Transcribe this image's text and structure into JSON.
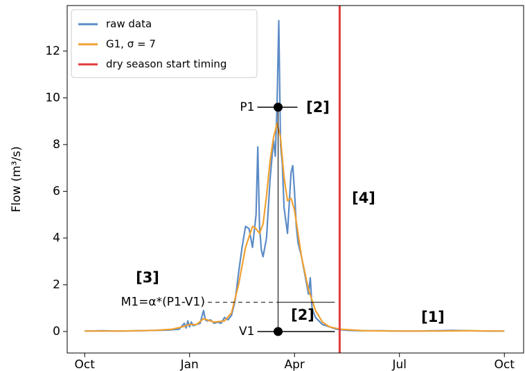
{
  "chart_data": {
    "type": "line",
    "y_label": "Flow (m³/s)",
    "xlim": [
      -0.5,
      12.55
    ],
    "ylim": [
      -0.92,
      13.95
    ],
    "xticks": [
      {
        "value": 0,
        "label": "Oct"
      },
      {
        "value": 3,
        "label": "Jan"
      },
      {
        "value": 6,
        "label": "Apr"
      },
      {
        "value": 9,
        "label": "Jul"
      },
      {
        "value": 12,
        "label": "Oct"
      }
    ],
    "yticks": [
      0,
      2,
      4,
      6,
      8,
      10,
      12
    ],
    "legend": "upper left",
    "series": [
      {
        "name": "raw data",
        "color": "#5b8bc6",
        "x": [
          0,
          0.5,
          1,
          1.5,
          2,
          2.4,
          2.7,
          2.85,
          2.9,
          2.95,
          3.0,
          3.05,
          3.1,
          3.2,
          3.3,
          3.4,
          3.45,
          3.5,
          3.6,
          3.7,
          3.8,
          3.9,
          4.0,
          4.1,
          4.2,
          4.3,
          4.4,
          4.5,
          4.6,
          4.7,
          4.8,
          4.9,
          4.95,
          5.0,
          5.05,
          5.1,
          5.2,
          5.3,
          5.4,
          5.45,
          5.5,
          5.55,
          5.6,
          5.65,
          5.7,
          5.8,
          5.9,
          5.95,
          6.0,
          6.05,
          6.1,
          6.2,
          6.3,
          6.4,
          6.45,
          6.5,
          6.6,
          6.8,
          7.0,
          7.2,
          7.5,
          8,
          8.5,
          9,
          9.5,
          10,
          10.5,
          11,
          11.5,
          12
        ],
        "values": [
          0.02,
          0.03,
          0.02,
          0.03,
          0.05,
          0.06,
          0.1,
          0.35,
          0.15,
          0.45,
          0.2,
          0.4,
          0.25,
          0.3,
          0.35,
          0.9,
          0.5,
          0.45,
          0.5,
          0.35,
          0.4,
          0.35,
          0.6,
          0.5,
          0.7,
          1.3,
          2.5,
          3.6,
          4.5,
          4.4,
          3.6,
          5.0,
          7.9,
          4.5,
          3.5,
          3.2,
          4.0,
          6.5,
          8.2,
          7.5,
          9.7,
          13.3,
          8.0,
          7.2,
          5.3,
          4.2,
          6.8,
          7.1,
          6.0,
          4.5,
          3.8,
          3.2,
          2.4,
          1.6,
          2.3,
          1.0,
          0.6,
          0.3,
          0.2,
          0.1,
          0.05,
          0.03,
          0.03,
          0.02,
          0.02,
          0.03,
          0.05,
          0.03,
          0.02,
          0.02
        ]
      },
      {
        "name": "G1, σ = 7",
        "color": "#f0a030",
        "x": [
          0,
          1,
          2,
          2.5,
          2.8,
          3.0,
          3.2,
          3.4,
          3.5,
          3.7,
          4.0,
          4.2,
          4.4,
          4.6,
          4.8,
          4.9,
          5.0,
          5.1,
          5.2,
          5.3,
          5.4,
          5.5,
          5.6,
          5.7,
          5.8,
          5.9,
          6.0,
          6.1,
          6.2,
          6.4,
          6.6,
          6.8,
          7.0,
          7.3,
          8,
          9,
          10,
          11,
          12
        ],
        "values": [
          0.02,
          0.02,
          0.05,
          0.1,
          0.2,
          0.3,
          0.3,
          0.55,
          0.5,
          0.4,
          0.45,
          0.8,
          2.0,
          3.6,
          4.5,
          4.4,
          4.2,
          4.6,
          5.8,
          7.3,
          8.3,
          8.9,
          8.3,
          6.6,
          5.6,
          5.7,
          5.2,
          4.2,
          3.2,
          1.8,
          0.9,
          0.4,
          0.2,
          0.1,
          0.03,
          0.02,
          0.02,
          0.03,
          0.02
        ]
      }
    ],
    "vline": {
      "name": "dry season start timing",
      "color": "#e03a3a",
      "x": 7.29
    },
    "markers": [
      {
        "label": "P1",
        "x": 5.53,
        "y": 9.6
      },
      {
        "label": "V1",
        "x": 5.53,
        "y": 0
      }
    ],
    "threshold": {
      "label": "M1=α*(P1-V1)",
      "y": 1.25
    },
    "notes": [
      "[1]",
      "[2]",
      "[2]",
      "[3]",
      "[4]"
    ]
  }
}
